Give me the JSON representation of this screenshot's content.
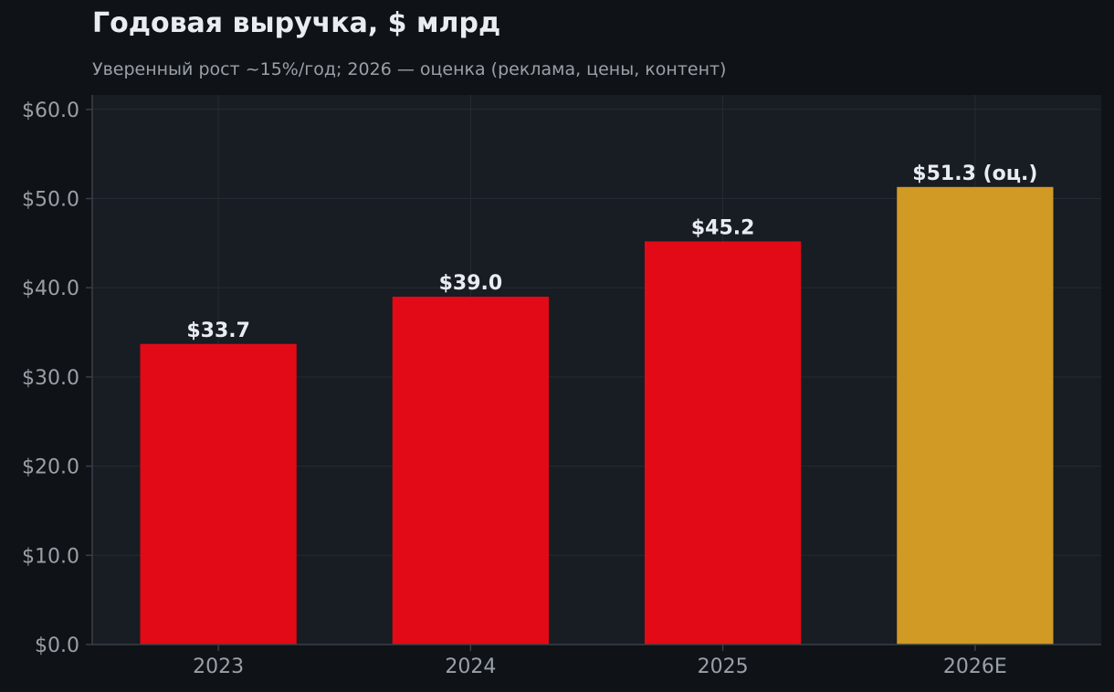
{
  "chart_data": {
    "type": "bar",
    "title": "Годовая выручка, $ млрд",
    "subtitle": "Уверенный рост ~15%/год; 2026 — оценка (реклама, цены, контент)",
    "categories": [
      "2023",
      "2024",
      "2025",
      "2026E"
    ],
    "values": [
      33.7,
      39.0,
      45.2,
      51.3
    ],
    "data_labels": [
      "$33.7",
      "$39.0",
      "$45.2",
      "$51.3 (оц.)"
    ],
    "bar_colors": [
      "#e20a16",
      "#e20a16",
      "#e20a16",
      "#d19a24"
    ],
    "xlabel": "",
    "ylabel": "",
    "ylim": [
      0,
      60
    ],
    "y_ticks": [
      0,
      10,
      20,
      30,
      40,
      50,
      60
    ],
    "y_tick_labels": [
      "$0.0",
      "$10.0",
      "$20.0",
      "$30.0",
      "$40.0",
      "$50.0",
      "$60.0"
    ],
    "grid": true,
    "legend": "none",
    "colors": {
      "page_background": "#0f1317",
      "plot_background": "#181c23",
      "grid": "#262b33",
      "axis": "#3a3f47",
      "tick_text": "#9aa0a8",
      "label_text": "#e9edf1",
      "actual": "#e20a16",
      "estimate": "#d19a24"
    }
  }
}
